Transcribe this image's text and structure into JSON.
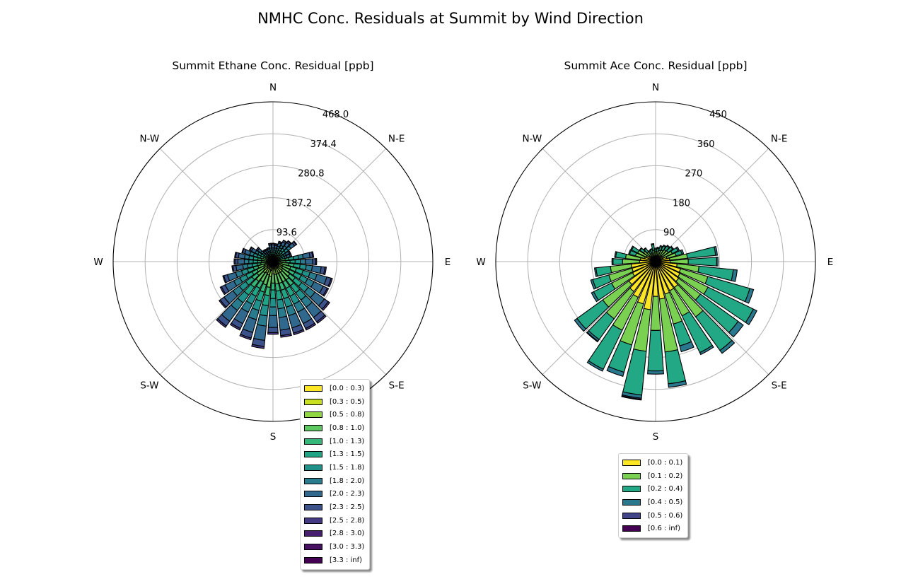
{
  "figure": {
    "title": "NMHC Conc. Residuals at Summit by Wind Direction"
  },
  "chart_data": [
    {
      "type": "windrose",
      "title": "Summit Ethane Conc. Residual [ppb]",
      "direction_labels": [
        "N",
        "N-E",
        "E",
        "S-E",
        "S",
        "S-W",
        "W",
        "N-W"
      ],
      "radial_ticks": [
        "93.6",
        "187.2",
        "280.8",
        "374.4",
        "468.0"
      ],
      "radial_tick_values": [
        93.6,
        187.2,
        280.8,
        374.4,
        468.0
      ],
      "rmax": 468.0,
      "sector_count": 36,
      "bins": [
        "[0.0 : 0.3)",
        "[0.3 : 0.5)",
        "[0.5 : 0.8)",
        "[0.8 : 1.0)",
        "[1.0 : 1.3)",
        "[1.3 : 1.5)",
        "[1.5 : 1.8)",
        "[1.8 : 2.0)",
        "[2.0 : 2.3)",
        "[2.3 : 2.5)",
        "[2.5 : 2.8)",
        "[2.8 : 3.0)",
        "[3.0 : 3.3)",
        "[3.3 : inf)"
      ],
      "colors": [
        "#fde725",
        "#c8e020",
        "#90d743",
        "#5ec962",
        "#35b779",
        "#20a486",
        "#21918c",
        "#287c8e",
        "#31688e",
        "#3b528b",
        "#443983",
        "#481f70",
        "#471063",
        "#440154"
      ],
      "sectors": [
        {
          "dir": 0,
          "values": [
            3,
            3,
            4,
            7,
            5,
            6,
            6,
            6,
            9,
            4,
            1,
            0,
            0,
            0
          ]
        },
        {
          "dir": 10,
          "values": [
            3,
            3,
            4,
            7,
            5,
            6,
            6,
            6,
            8,
            4,
            1,
            0,
            0,
            0
          ]
        },
        {
          "dir": 20,
          "values": [
            3,
            4,
            5,
            8,
            6,
            7,
            7,
            7,
            10,
            4,
            1,
            0,
            0,
            0
          ]
        },
        {
          "dir": 30,
          "values": [
            4,
            4,
            5,
            9,
            7,
            8,
            8,
            8,
            11,
            5,
            1,
            0,
            0,
            0
          ]
        },
        {
          "dir": 40,
          "values": [
            4,
            4,
            6,
            9,
            7,
            9,
            9,
            9,
            12,
            5,
            2,
            0,
            0,
            0
          ]
        },
        {
          "dir": 50,
          "values": [
            5,
            5,
            6,
            11,
            8,
            10,
            10,
            10,
            13,
            6,
            2,
            0,
            0,
            0
          ]
        },
        {
          "dir": 60,
          "values": [
            3,
            3,
            4,
            7,
            5,
            7,
            7,
            7,
            9,
            4,
            1,
            0,
            0,
            0
          ]
        },
        {
          "dir": 70,
          "values": [
            3,
            3,
            4,
            7,
            5,
            7,
            7,
            7,
            9,
            4,
            1,
            0,
            0,
            0
          ]
        },
        {
          "dir": 80,
          "values": [
            6,
            6,
            9,
            15,
            11,
            14,
            14,
            14,
            20,
            8,
            3,
            0,
            0,
            0
          ]
        },
        {
          "dir": 90,
          "values": [
            7,
            6,
            9,
            16,
            12,
            15,
            15,
            15,
            21,
            9,
            3,
            0,
            0,
            0
          ]
        },
        {
          "dir": 100,
          "values": [
            8,
            8,
            11,
            20,
            15,
            18,
            18,
            18,
            26,
            11,
            4,
            0,
            0,
            0
          ]
        },
        {
          "dir": 110,
          "values": [
            9,
            9,
            13,
            23,
            17,
            21,
            21,
            21,
            30,
            13,
            4,
            0,
            0,
            0
          ]
        },
        {
          "dir": 120,
          "values": [
            9,
            9,
            13,
            23,
            17,
            21,
            21,
            21,
            30,
            13,
            4,
            0,
            0,
            0
          ]
        },
        {
          "dir": 130,
          "values": [
            10,
            10,
            15,
            26,
            19,
            24,
            24,
            24,
            34,
            14,
            5,
            0,
            0,
            0
          ]
        },
        {
          "dir": 140,
          "values": [
            11,
            11,
            16,
            28,
            21,
            26,
            26,
            26,
            37,
            16,
            5,
            0,
            0,
            0
          ]
        },
        {
          "dir": 150,
          "values": [
            11,
            11,
            16,
            28,
            21,
            26,
            26,
            26,
            37,
            16,
            5,
            0,
            0,
            0
          ]
        },
        {
          "dir": 160,
          "values": [
            11,
            11,
            16,
            28,
            21,
            26,
            26,
            26,
            37,
            16,
            5,
            0,
            0,
            0
          ]
        },
        {
          "dir": 170,
          "values": [
            11,
            11,
            16,
            28,
            21,
            26,
            26,
            26,
            37,
            16,
            5,
            0,
            0,
            0
          ]
        },
        {
          "dir": 180,
          "values": [
            11,
            10,
            15,
            27,
            20,
            25,
            25,
            25,
            35,
            15,
            5,
            0,
            0,
            0
          ]
        },
        {
          "dir": 190,
          "values": [
            13,
            13,
            18,
            32,
            24,
            30,
            30,
            30,
            42,
            18,
            6,
            0,
            0,
            0
          ]
        },
        {
          "dir": 200,
          "values": [
            12,
            12,
            17,
            30,
            22,
            28,
            28,
            28,
            39,
            17,
            5,
            0,
            0,
            0
          ]
        },
        {
          "dir": 210,
          "values": [
            11,
            11,
            16,
            28,
            21,
            26,
            26,
            26,
            37,
            16,
            5,
            0,
            0,
            0
          ]
        },
        {
          "dir": 220,
          "values": [
            12,
            12,
            17,
            30,
            22,
            28,
            28,
            28,
            39,
            17,
            5,
            0,
            0,
            0
          ]
        },
        {
          "dir": 230,
          "values": [
            10,
            10,
            14,
            24,
            18,
            23,
            23,
            23,
            32,
            14,
            4,
            0,
            0,
            0
          ]
        },
        {
          "dir": 240,
          "values": [
            9,
            9,
            12,
            22,
            16,
            20,
            20,
            20,
            28,
            12,
            4,
            0,
            0,
            0
          ]
        },
        {
          "dir": 250,
          "values": [
            8,
            8,
            11,
            19,
            14,
            18,
            18,
            18,
            25,
            11,
            3,
            0,
            0,
            0
          ]
        },
        {
          "dir": 260,
          "values": [
            6,
            6,
            9,
            15,
            11,
            14,
            14,
            14,
            20,
            9,
            3,
            0,
            0,
            0
          ]
        },
        {
          "dir": 270,
          "values": [
            6,
            6,
            8,
            14,
            11,
            13,
            13,
            13,
            19,
            8,
            3,
            0,
            0,
            0
          ]
        },
        {
          "dir": 280,
          "values": [
            6,
            6,
            8,
            14,
            11,
            13,
            13,
            13,
            18,
            8,
            3,
            0,
            0,
            0
          ]
        },
        {
          "dir": 290,
          "values": [
            5,
            5,
            7,
            12,
            9,
            11,
            11,
            11,
            15,
            7,
            2,
            0,
            0,
            0
          ]
        },
        {
          "dir": 300,
          "values": [
            4,
            4,
            6,
            10,
            7,
            9,
            9,
            9,
            12,
            5,
            2,
            0,
            0,
            0
          ]
        },
        {
          "dir": 310,
          "values": [
            3,
            3,
            4,
            8,
            6,
            7,
            7,
            7,
            10,
            4,
            1,
            0,
            0,
            0
          ]
        },
        {
          "dir": 320,
          "values": [
            2,
            2,
            3,
            6,
            4,
            5,
            5,
            5,
            7,
            3,
            1,
            0,
            0,
            0
          ]
        },
        {
          "dir": 330,
          "values": [
            2,
            2,
            3,
            5,
            4,
            5,
            5,
            5,
            7,
            3,
            1,
            0,
            0,
            0
          ]
        },
        {
          "dir": 340,
          "values": [
            2,
            2,
            3,
            6,
            4,
            5,
            5,
            5,
            7,
            3,
            1,
            0,
            0,
            0
          ]
        },
        {
          "dir": 350,
          "values": [
            3,
            3,
            4,
            7,
            5,
            6,
            6,
            6,
            9,
            4,
            1,
            0,
            0,
            0
          ]
        }
      ]
    },
    {
      "type": "windrose",
      "title": "Summit Ace Conc. Residual [ppb]",
      "direction_labels": [
        "N",
        "N-E",
        "E",
        "S-E",
        "S",
        "S-W",
        "W",
        "N-W"
      ],
      "radial_ticks": [
        "90",
        "180",
        "270",
        "360",
        "450"
      ],
      "radial_tick_values": [
        90,
        180,
        270,
        360,
        450
      ],
      "rmax": 450,
      "sector_count": 36,
      "bins": [
        "[0.0 : 0.1)",
        "[0.1 : 0.2)",
        "[0.2 : 0.4)",
        "[0.4 : 0.5)",
        "[0.5 : 0.6)",
        "[0.6 : inf)"
      ],
      "colors": [
        "#fde725",
        "#7ad151",
        "#22a884",
        "#2a788e",
        "#414487",
        "#440154"
      ],
      "sectors": [
        {
          "dir": 0,
          "values": [
            15,
            13,
            7,
            3,
            0,
            0
          ]
        },
        {
          "dir": 10,
          "values": [
            15,
            13,
            10,
            3,
            0,
            0
          ]
        },
        {
          "dir": 20,
          "values": [
            17,
            16,
            11,
            3,
            0,
            0
          ]
        },
        {
          "dir": 30,
          "values": [
            18,
            18,
            13,
            3,
            0,
            0
          ]
        },
        {
          "dir": 40,
          "values": [
            21,
            20,
            13,
            3,
            0,
            0
          ]
        },
        {
          "dir": 50,
          "values": [
            23,
            21,
            15,
            3,
            0,
            0
          ]
        },
        {
          "dir": 60,
          "values": [
            23,
            29,
            18,
            4,
            0,
            0
          ]
        },
        {
          "dir": 70,
          "values": [
            33,
            27,
            17,
            5,
            0,
            0
          ]
        },
        {
          "dir": 80,
          "values": [
            40,
            50,
            80,
            5,
            0,
            0
          ]
        },
        {
          "dir": 90,
          "values": [
            41,
            51,
            80,
            4,
            0,
            0
          ]
        },
        {
          "dir": 100,
          "values": [
            61,
            62,
            97,
            11,
            0,
            0
          ]
        },
        {
          "dir": 110,
          "values": [
            73,
            80,
            123,
            11,
            0,
            0
          ]
        },
        {
          "dir": 120,
          "values": [
            76,
            88,
            142,
            11,
            0,
            0
          ]
        },
        {
          "dir": 130,
          "values": [
            80,
            76,
            131,
            18,
            0,
            0
          ]
        },
        {
          "dir": 140,
          "values": [
            90,
            102,
            117,
            10,
            0,
            0
          ]
        },
        {
          "dir": 150,
          "values": [
            91,
            79,
            115,
            6,
            0,
            0
          ]
        },
        {
          "dir": 160,
          "values": [
            95,
            88,
            64,
            17,
            0,
            0
          ]
        },
        {
          "dir": 170,
          "values": [
            106,
            150,
            90,
            10,
            0,
            0
          ]
        },
        {
          "dir": 180,
          "values": [
            98,
            96,
            114,
            9,
            0,
            0
          ]
        },
        {
          "dir": 190,
          "values": [
            136,
            118,
            124,
            9,
            3,
            2
          ]
        },
        {
          "dir": 200,
          "values": [
            124,
            120,
            80,
            12,
            0,
            0
          ]
        },
        {
          "dir": 210,
          "values": [
            112,
            103,
            122,
            6,
            0,
            0
          ]
        },
        {
          "dir": 220,
          "values": [
            104,
            95,
            72,
            6,
            2,
            0
          ]
        },
        {
          "dir": 230,
          "values": [
            93,
            91,
            89,
            9,
            0,
            0
          ]
        },
        {
          "dir": 240,
          "values": [
            72,
            66,
            56,
            7,
            0,
            0
          ]
        },
        {
          "dir": 250,
          "values": [
            69,
            68,
            47,
            6,
            0,
            0
          ]
        },
        {
          "dir": 260,
          "values": [
            69,
            59,
            41,
            4,
            0,
            0
          ]
        },
        {
          "dir": 270,
          "values": [
            45,
            48,
            27,
            3,
            0,
            0
          ]
        },
        {
          "dir": 280,
          "values": [
            43,
            42,
            28,
            3,
            0,
            0
          ]
        },
        {
          "dir": 290,
          "values": [
            32,
            27,
            17,
            3,
            0,
            0
          ]
        },
        {
          "dir": 300,
          "values": [
            29,
            27,
            19,
            3,
            0,
            0
          ]
        },
        {
          "dir": 310,
          "values": [
            23,
            19,
            12,
            2,
            0,
            0
          ]
        },
        {
          "dir": 320,
          "values": [
            18,
            16,
            12,
            2,
            0,
            0
          ]
        },
        {
          "dir": 330,
          "values": [
            13,
            12,
            9,
            2,
            0,
            0
          ]
        },
        {
          "dir": 340,
          "values": [
            14,
            12,
            10,
            2,
            0,
            0
          ]
        },
        {
          "dir": 350,
          "values": [
            16,
            16,
            16,
            3,
            0,
            0
          ]
        }
      ]
    }
  ]
}
